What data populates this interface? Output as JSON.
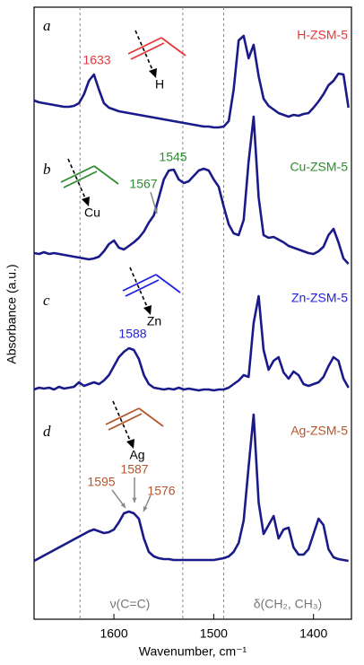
{
  "chart_data": {
    "type": "line",
    "xlabel": "Wavenumber, cm⁻¹",
    "ylabel": "Absorbance (a.u.)",
    "region_labels": [
      "ν(C=C)",
      "δ(CH₂, CH₃)"
    ],
    "xlim": [
      1680,
      1362
    ],
    "xticks": [
      1600,
      1500,
      1400
    ],
    "reference_lines": [
      1634,
      1531,
      1490
    ],
    "x": [
      1680,
      1675,
      1670,
      1665,
      1660,
      1655,
      1650,
      1645,
      1640,
      1635,
      1630,
      1625,
      1620,
      1615,
      1610,
      1605,
      1600,
      1595,
      1590,
      1585,
      1580,
      1575,
      1570,
      1565,
      1560,
      1555,
      1550,
      1545,
      1540,
      1535,
      1530,
      1525,
      1520,
      1515,
      1510,
      1505,
      1500,
      1495,
      1490,
      1485,
      1480,
      1475,
      1470,
      1465,
      1460,
      1455,
      1450,
      1445,
      1440,
      1435,
      1430,
      1425,
      1420,
      1415,
      1410,
      1405,
      1400,
      1395,
      1390,
      1385,
      1380,
      1375,
      1370,
      1365
    ],
    "series": [
      {
        "name": "H-ZSM-5",
        "letter": "a",
        "metal": "H",
        "color": "#1a1a8a",
        "label_color": "#e8363a",
        "peaks": [
          1633
        ],
        "values": [
          33,
          31,
          30,
          29,
          28,
          27,
          26,
          26,
          27,
          30,
          40,
          55,
          62,
          45,
          30,
          25,
          23,
          21,
          20,
          19,
          18,
          17,
          16,
          15,
          14,
          13,
          12,
          11,
          10,
          9,
          8,
          7,
          6,
          5,
          4,
          4,
          3,
          3,
          4,
          10,
          45,
          100,
          105,
          80,
          95,
          60,
          35,
          27,
          23,
          19,
          17,
          15,
          17,
          16,
          18,
          19,
          25,
          32,
          40,
          50,
          55,
          63,
          62,
          25
        ]
      },
      {
        "name": "Cu-ZSM-5",
        "letter": "b",
        "metal": "Cu",
        "color": "#1a1a8a",
        "label_color": "#2e8b2e",
        "peaks": [
          1545,
          1567
        ],
        "values": [
          18,
          17,
          19,
          17,
          18,
          17,
          16,
          15,
          14,
          13,
          12,
          11,
          12,
          14,
          20,
          28,
          32,
          24,
          22,
          26,
          30,
          35,
          42,
          52,
          60,
          80,
          100,
          110,
          111,
          100,
          96,
          98,
          104,
          110,
          112,
          110,
          100,
          92,
          70,
          50,
          40,
          38,
          55,
          120,
          170,
          80,
          38,
          35,
          36,
          33,
          30,
          26,
          24,
          22,
          20,
          18,
          17,
          20,
          25,
          38,
          45,
          30,
          12,
          6
        ]
      },
      {
        "name": "Zn-ZSM-5",
        "letter": "c",
        "metal": "Zn",
        "color": "#1a1a8a",
        "label_color": "#2020e0",
        "peaks": [
          1588
        ],
        "values": [
          6,
          8,
          7,
          8,
          6,
          9,
          7,
          8,
          9,
          14,
          10,
          12,
          14,
          12,
          16,
          22,
          32,
          42,
          48,
          52,
          50,
          40,
          22,
          12,
          8,
          7,
          6,
          7,
          6,
          8,
          6,
          7,
          6,
          5,
          6,
          6,
          5,
          6,
          6,
          8,
          12,
          16,
          22,
          20,
          80,
          110,
          50,
          28,
          38,
          42,
          25,
          18,
          26,
          22,
          12,
          10,
          12,
          14,
          20,
          32,
          42,
          38,
          18,
          8
        ]
      },
      {
        "name": "Ag-ZSM-5",
        "letter": "d",
        "metal": "Ag",
        "color": "#1a1a8a",
        "label_color": "#b5552b",
        "peaks": [
          1595,
          1587,
          1576
        ],
        "values": [
          5,
          8,
          11,
          14,
          17,
          20,
          23,
          26,
          29,
          32,
          35,
          38,
          40,
          38,
          36,
          37,
          40,
          48,
          58,
          60,
          58,
          52,
          30,
          15,
          10,
          8,
          7,
          7,
          6,
          6,
          6,
          6,
          6,
          6,
          6,
          6,
          6,
          7,
          8,
          10,
          15,
          25,
          50,
          110,
          168,
          70,
          35,
          45,
          55,
          30,
          40,
          42,
          20,
          12,
          12,
          18,
          35,
          52,
          45,
          18,
          9,
          7,
          6,
          5
        ]
      }
    ]
  }
}
